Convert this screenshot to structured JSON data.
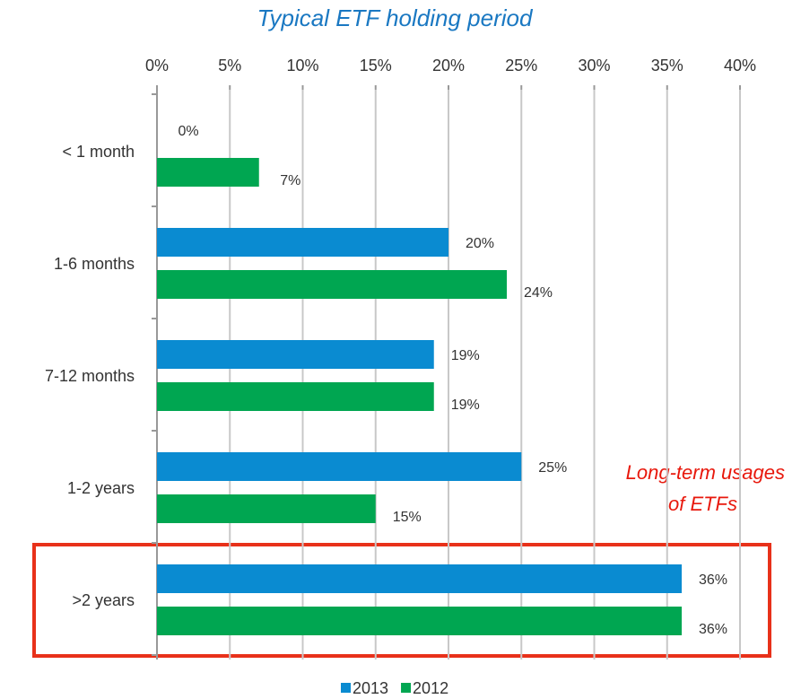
{
  "chart_data": {
    "type": "hbar",
    "title": "Typical ETF holding period",
    "categories": [
      "< 1 month",
      "1-6 months",
      "7-12 months",
      "1-2 years",
      ">2 years"
    ],
    "series": [
      {
        "name": "2013",
        "color": "#0a8bd1",
        "values": [
          0,
          20,
          19,
          25,
          36
        ],
        "value_labels": [
          "0%",
          "20%",
          "19%",
          "25%",
          "36%"
        ]
      },
      {
        "name": "2012",
        "color": "#00a651",
        "values": [
          7,
          24,
          19,
          15,
          36
        ],
        "value_labels": [
          "7%",
          "24%",
          "19%",
          "15%",
          "36%"
        ]
      }
    ],
    "xlim": [
      0,
      40
    ],
    "xticks": [
      {
        "value": 0,
        "label": "0%"
      },
      {
        "value": 5,
        "label": "5%"
      },
      {
        "value": 10,
        "label": "10%"
      },
      {
        "value": 15,
        "label": "15%"
      },
      {
        "value": 20,
        "label": "20%"
      },
      {
        "value": 25,
        "label": "25%"
      },
      {
        "value": 30,
        "label": "30%"
      },
      {
        "value": 35,
        "label": "35%"
      },
      {
        "value": 40,
        "label": "40%"
      }
    ],
    "grid": true,
    "annotation": [
      "Long-term usages",
      "of ETFs"
    ]
  }
}
